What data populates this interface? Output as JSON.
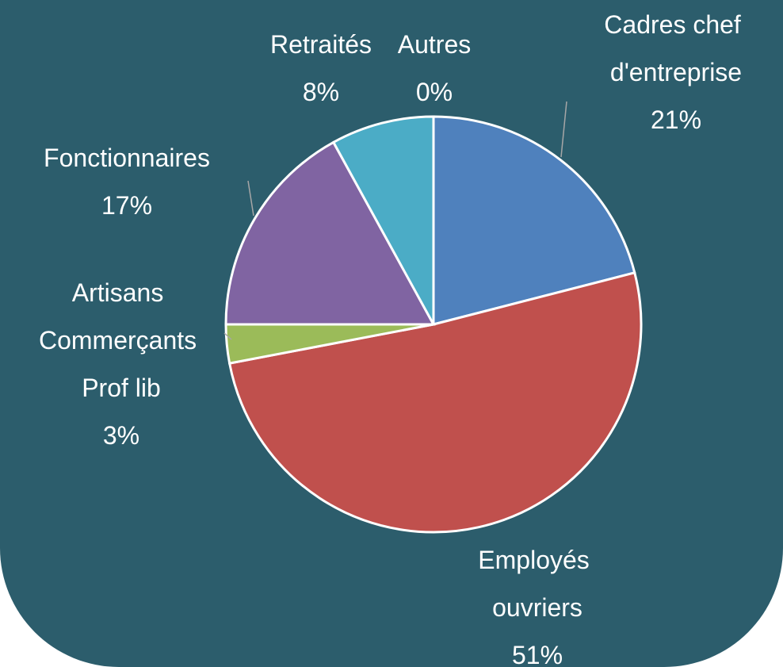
{
  "chart_data": {
    "type": "pie",
    "categories": [
      "Cadres chef d'entreprise",
      "Employés ouvriers",
      "Artisans Commerçants Prof lib",
      "Fonctionnaires",
      "Retraités",
      "Autres"
    ],
    "values": [
      21,
      51,
      3,
      17,
      8,
      0
    ],
    "value_labels": [
      "21%",
      "51%",
      "3%",
      "17%",
      "8%",
      "0%"
    ],
    "colors": [
      "#4f81bd",
      "#c0504d",
      "#9bbb59",
      "#8064a2",
      "#4bacc6",
      "#f79646"
    ]
  }
}
